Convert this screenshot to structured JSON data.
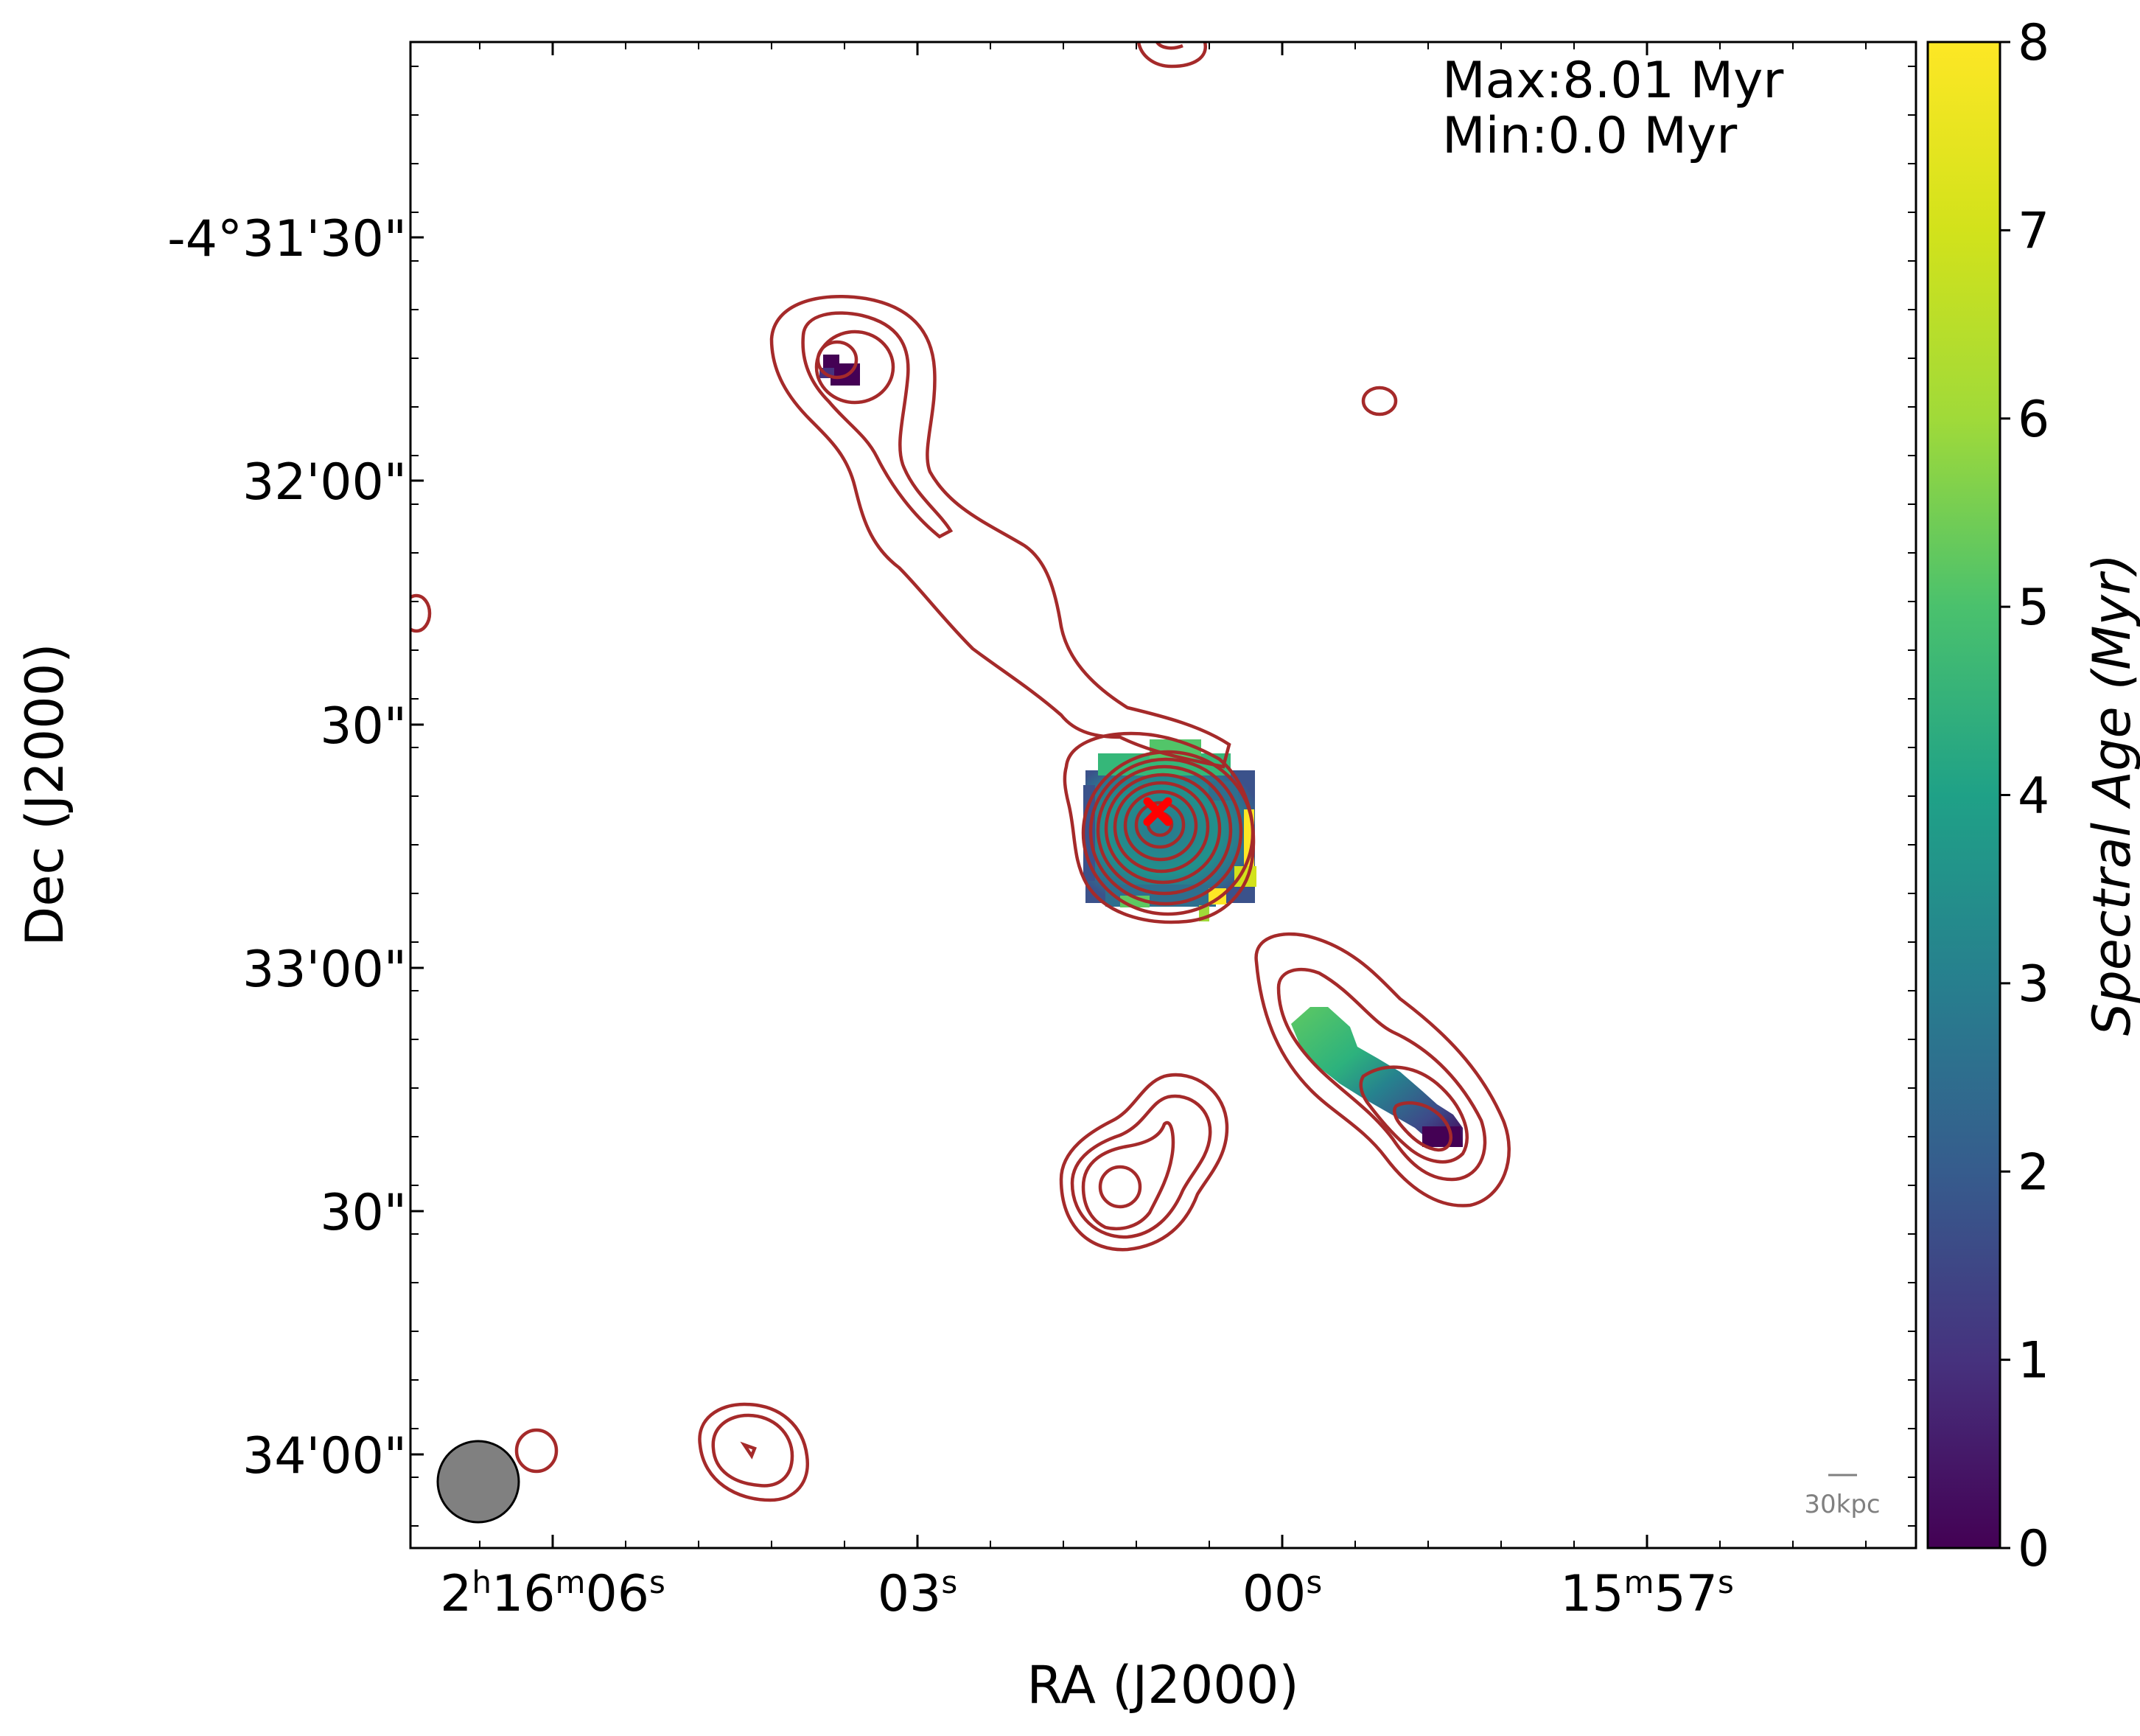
{
  "chart_data": {
    "type": "heatmap",
    "title": "",
    "xlabel": "RA (J2000)",
    "ylabel": "Dec (J2000)",
    "x_ticks": [
      {
        "base": "2",
        "u1": "h",
        "mid": "16",
        "u2": "m",
        "sec": "06",
        "u3": "s"
      },
      {
        "base": "",
        "u1": "",
        "mid": "",
        "u2": "",
        "sec": "03",
        "u3": "s"
      },
      {
        "base": "",
        "u1": "",
        "mid": "",
        "u2": "",
        "sec": "00",
        "u3": "s"
      },
      {
        "base": "15",
        "u1": "m",
        "mid": "",
        "u2": "",
        "sec": "57",
        "u3": "s"
      }
    ],
    "y_ticks": [
      "-4°31'30\"",
      "32'00\"",
      "30\"",
      "33'00\"",
      "30\"",
      "34'00\""
    ],
    "colorbar": {
      "label": "Spectral Age (Myr)",
      "min": 0,
      "max": 8,
      "ticks": [
        "0",
        "1",
        "2",
        "3",
        "4",
        "5",
        "6",
        "7",
        "8"
      ],
      "colormap": "viridis"
    },
    "annotations": {
      "max_text": "Max:8.01 Myr",
      "min_text": "Min:0.0 Myr",
      "scalebar_label": "30kpc"
    },
    "age_regions": [
      {
        "region": "north-hotspot",
        "age_myr": 0.3
      },
      {
        "region": "core",
        "age_myr": 3.8,
        "edge_age_myr": 8.0
      },
      {
        "region": "south-lobe-upper",
        "age_myr": 6.2
      },
      {
        "region": "south-lobe-middle",
        "age_myr": 3.5
      },
      {
        "region": "south-lobe-tip",
        "age_myr": 0.4
      }
    ],
    "colors": {
      "contour": "#a52a2a",
      "host_marker": "#ff0000",
      "beam": "#808080"
    }
  }
}
